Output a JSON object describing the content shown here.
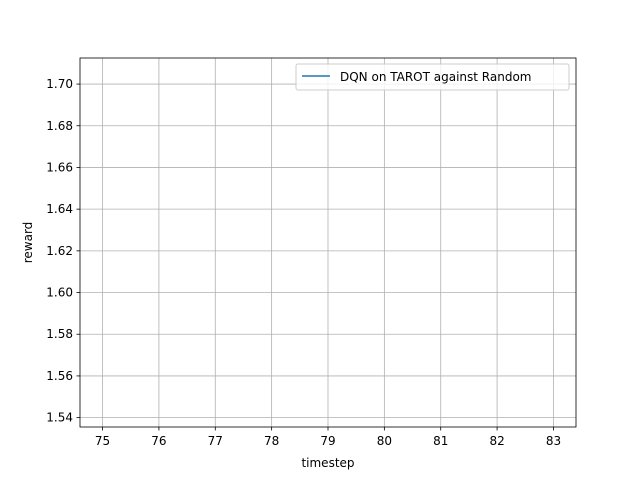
{
  "chart_data": {
    "type": "line",
    "title": "",
    "xlabel": "timestep",
    "ylabel": "reward",
    "xlim": [
      74.6,
      83.4
    ],
    "ylim": [
      1.5355,
      1.7125
    ],
    "x_ticks": [
      75,
      76,
      77,
      78,
      79,
      80,
      81,
      82,
      83
    ],
    "x_tick_labels": [
      "75",
      "76",
      "77",
      "78",
      "79",
      "80",
      "81",
      "82",
      "83"
    ],
    "y_ticks": [
      1.54,
      1.56,
      1.58,
      1.6,
      1.62,
      1.64,
      1.66,
      1.68,
      1.7
    ],
    "y_tick_labels": [
      "1.54",
      "1.56",
      "1.58",
      "1.60",
      "1.62",
      "1.64",
      "1.66",
      "1.68",
      "1.70"
    ],
    "grid": true,
    "legend_position": "top-right",
    "series": [
      {
        "name": "DQN on TAROT against Random",
        "color": "#1f77b4",
        "x": [],
        "y": []
      }
    ]
  }
}
